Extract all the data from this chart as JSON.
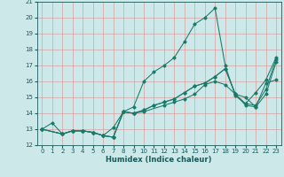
{
  "xlabel": "Humidex (Indice chaleur)",
  "xlim": [
    -0.5,
    23.5
  ],
  "ylim": [
    12,
    21
  ],
  "yticks": [
    12,
    13,
    14,
    15,
    16,
    17,
    18,
    19,
    20,
    21
  ],
  "xticks": [
    0,
    1,
    2,
    3,
    4,
    5,
    6,
    7,
    8,
    9,
    10,
    11,
    12,
    13,
    14,
    15,
    16,
    17,
    18,
    19,
    20,
    21,
    22,
    23
  ],
  "bg_color": "#cce8e8",
  "grid_color": "#e08080",
  "line_color": "#1a7a6a",
  "lines": [
    {
      "x": [
        0,
        1,
        2,
        3,
        4,
        5,
        6,
        7,
        8,
        9,
        10,
        11,
        12,
        13,
        14,
        15,
        16,
        17,
        18,
        19,
        20,
        21,
        22,
        23
      ],
      "y": [
        13.0,
        13.4,
        12.7,
        12.9,
        12.9,
        12.8,
        12.6,
        13.1,
        14.1,
        14.4,
        16.0,
        16.6,
        17.0,
        17.5,
        18.5,
        19.6,
        20.0,
        20.6,
        17.0,
        15.1,
        14.6,
        15.3,
        16.1,
        17.5
      ]
    },
    {
      "x": [
        0,
        2,
        3,
        4,
        5,
        6,
        7,
        8,
        9,
        10,
        11,
        12,
        13,
        14,
        15,
        16,
        17,
        18,
        19,
        20,
        21,
        22,
        23
      ],
      "y": [
        13.0,
        12.7,
        12.9,
        12.9,
        12.8,
        12.6,
        12.5,
        14.1,
        14.0,
        14.2,
        14.5,
        14.7,
        14.9,
        15.3,
        15.7,
        15.9,
        16.3,
        16.8,
        15.2,
        14.6,
        14.5,
        15.5,
        17.4
      ]
    },
    {
      "x": [
        0,
        2,
        3,
        4,
        5,
        6,
        7,
        8,
        9,
        10,
        11,
        12,
        13,
        14,
        15,
        16,
        17,
        18,
        19,
        20,
        21,
        22,
        23
      ],
      "y": [
        13.0,
        12.7,
        12.9,
        12.9,
        12.8,
        12.6,
        12.5,
        14.1,
        14.0,
        14.2,
        14.5,
        14.7,
        14.9,
        15.3,
        15.7,
        15.9,
        16.3,
        16.8,
        15.2,
        15.0,
        14.4,
        15.9,
        16.1
      ]
    },
    {
      "x": [
        0,
        2,
        3,
        4,
        5,
        6,
        7,
        8,
        9,
        10,
        12,
        13,
        14,
        15,
        16,
        17,
        18,
        19,
        20,
        21,
        22,
        23
      ],
      "y": [
        13.0,
        12.7,
        12.9,
        12.9,
        12.8,
        12.6,
        12.5,
        14.1,
        14.0,
        14.1,
        14.5,
        14.7,
        14.9,
        15.2,
        15.8,
        16.0,
        15.8,
        15.2,
        14.5,
        14.4,
        15.2,
        17.2
      ]
    }
  ]
}
